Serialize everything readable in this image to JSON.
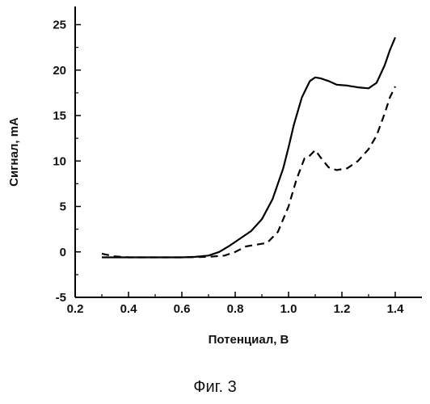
{
  "caption": "Фиг. 3",
  "chart_data": {
    "type": "line",
    "xlabel": "Потенциал, В",
    "ylabel": "Сигнал, mA",
    "xlim": [
      0.2,
      1.5
    ],
    "ylim": [
      -5,
      27
    ],
    "x_ticks": [
      0.2,
      0.4,
      0.6,
      0.8,
      1.0,
      1.2,
      1.4
    ],
    "x_tick_labels": [
      "0.2",
      "0.4",
      "0.6",
      "0.8",
      "1.0",
      "1.2",
      "1.4"
    ],
    "y_ticks": [
      -5,
      0,
      5,
      10,
      15,
      20,
      25
    ],
    "y_tick_labels": [
      "-5",
      "0",
      "5",
      "10",
      "15",
      "20",
      "25"
    ],
    "grid": false,
    "legend": "none",
    "series": [
      {
        "style": "solid",
        "color": "#000000",
        "x": [
          0.3,
          0.4,
          0.5,
          0.6,
          0.65,
          0.7,
          0.74,
          0.78,
          0.82,
          0.86,
          0.9,
          0.94,
          0.98,
          1.0,
          1.02,
          1.05,
          1.08,
          1.1,
          1.12,
          1.15,
          1.18,
          1.22,
          1.26,
          1.3,
          1.33,
          1.36,
          1.38,
          1.4
        ],
        "y": [
          -0.6,
          -0.6,
          -0.6,
          -0.6,
          -0.55,
          -0.4,
          0.0,
          0.7,
          1.5,
          2.3,
          3.6,
          5.8,
          9.2,
          11.5,
          14.0,
          17.0,
          18.8,
          19.2,
          19.1,
          18.8,
          18.4,
          18.3,
          18.1,
          18.0,
          18.6,
          20.5,
          22.2,
          23.6
        ]
      },
      {
        "style": "dashed",
        "color": "#000000",
        "x": [
          0.3,
          0.35,
          0.4,
          0.5,
          0.6,
          0.7,
          0.76,
          0.8,
          0.84,
          0.88,
          0.92,
          0.96,
          1.0,
          1.03,
          1.06,
          1.08,
          1.1,
          1.12,
          1.15,
          1.18,
          1.22,
          1.26,
          1.3,
          1.33,
          1.36,
          1.38,
          1.4
        ],
        "y": [
          -0.2,
          -0.5,
          -0.6,
          -0.6,
          -0.6,
          -0.55,
          -0.4,
          0.0,
          0.6,
          0.8,
          1.0,
          2.2,
          5.0,
          8.0,
          10.3,
          10.6,
          11.2,
          10.4,
          9.3,
          9.0,
          9.2,
          10.0,
          11.3,
          12.8,
          15.2,
          17.0,
          18.2
        ]
      }
    ]
  }
}
